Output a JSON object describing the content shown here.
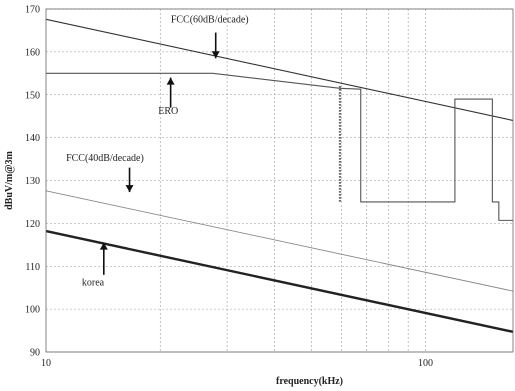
{
  "chart_data": {
    "type": "line",
    "xlabel": "frequency(kHz)",
    "ylabel": "dBuV/m@3m",
    "xscale": "log",
    "xlim": [
      10,
      170
    ],
    "ylim": [
      90,
      170
    ],
    "xticks": [
      10,
      100
    ],
    "xtick_labels": [
      "10",
      "100"
    ],
    "yticks": [
      90,
      100,
      110,
      120,
      130,
      140,
      150,
      160,
      170
    ],
    "ytick_labels": [
      "90",
      "100",
      "110",
      "120",
      "130",
      "140",
      "150",
      "160",
      "170"
    ],
    "grid": true,
    "series": [
      {
        "name": "FCC(60dB/decade)",
        "color": "#333333",
        "width": 1.1,
        "points": [
          [
            10,
            167.6
          ],
          [
            170,
            144.0
          ]
        ]
      },
      {
        "name": "ERO",
        "color": "#555555",
        "width": 1.1,
        "points": [
          [
            10,
            155.0
          ],
          [
            27.5,
            155.0
          ],
          [
            59.5,
            151.5
          ],
          [
            59.5,
            151.5
          ],
          [
            67.5,
            151.3
          ],
          [
            67.5,
            125.0
          ],
          [
            119.5,
            125.0
          ],
          [
            119.5,
            149.0
          ],
          [
            150,
            149.0
          ],
          [
            150,
            125.0
          ],
          [
            156,
            125.0
          ],
          [
            156,
            120.7
          ],
          [
            170,
            120.7
          ]
        ]
      },
      {
        "name": "FCC(40dB/decade)",
        "color": "#888888",
        "width": 0.9,
        "points": [
          [
            10,
            127.6
          ],
          [
            170,
            104.2
          ]
        ]
      },
      {
        "name": "korea",
        "color": "#222222",
        "width": 2.4,
        "points": [
          [
            10,
            118.2
          ],
          [
            170,
            94.7
          ]
        ]
      }
    ],
    "spike": {
      "x": 59.5,
      "y_top": 152.0,
      "y_bottom": 125.0
    },
    "annotations": [
      {
        "text": "FCC(60dB/decade)",
        "tx": 27.0,
        "ty": 166.8,
        "ax": 28.0,
        "ay_from": 164.5,
        "ay_to": 158.5
      },
      {
        "text": "ERO",
        "tx": 21.0,
        "ty": 145.5,
        "ax": 21.3,
        "ay_from": 147.0,
        "ay_to": 154.0
      },
      {
        "text": "FCC(40dB/decade)",
        "tx": 14.3,
        "ty": 134.5,
        "ax": 16.6,
        "ay_from": 133.0,
        "ay_to": 127.3
      },
      {
        "text": "korea",
        "tx": 13.3,
        "ty": 105.5,
        "ax": 14.2,
        "ay_from": 108.0,
        "ay_to": 115.5
      }
    ]
  }
}
